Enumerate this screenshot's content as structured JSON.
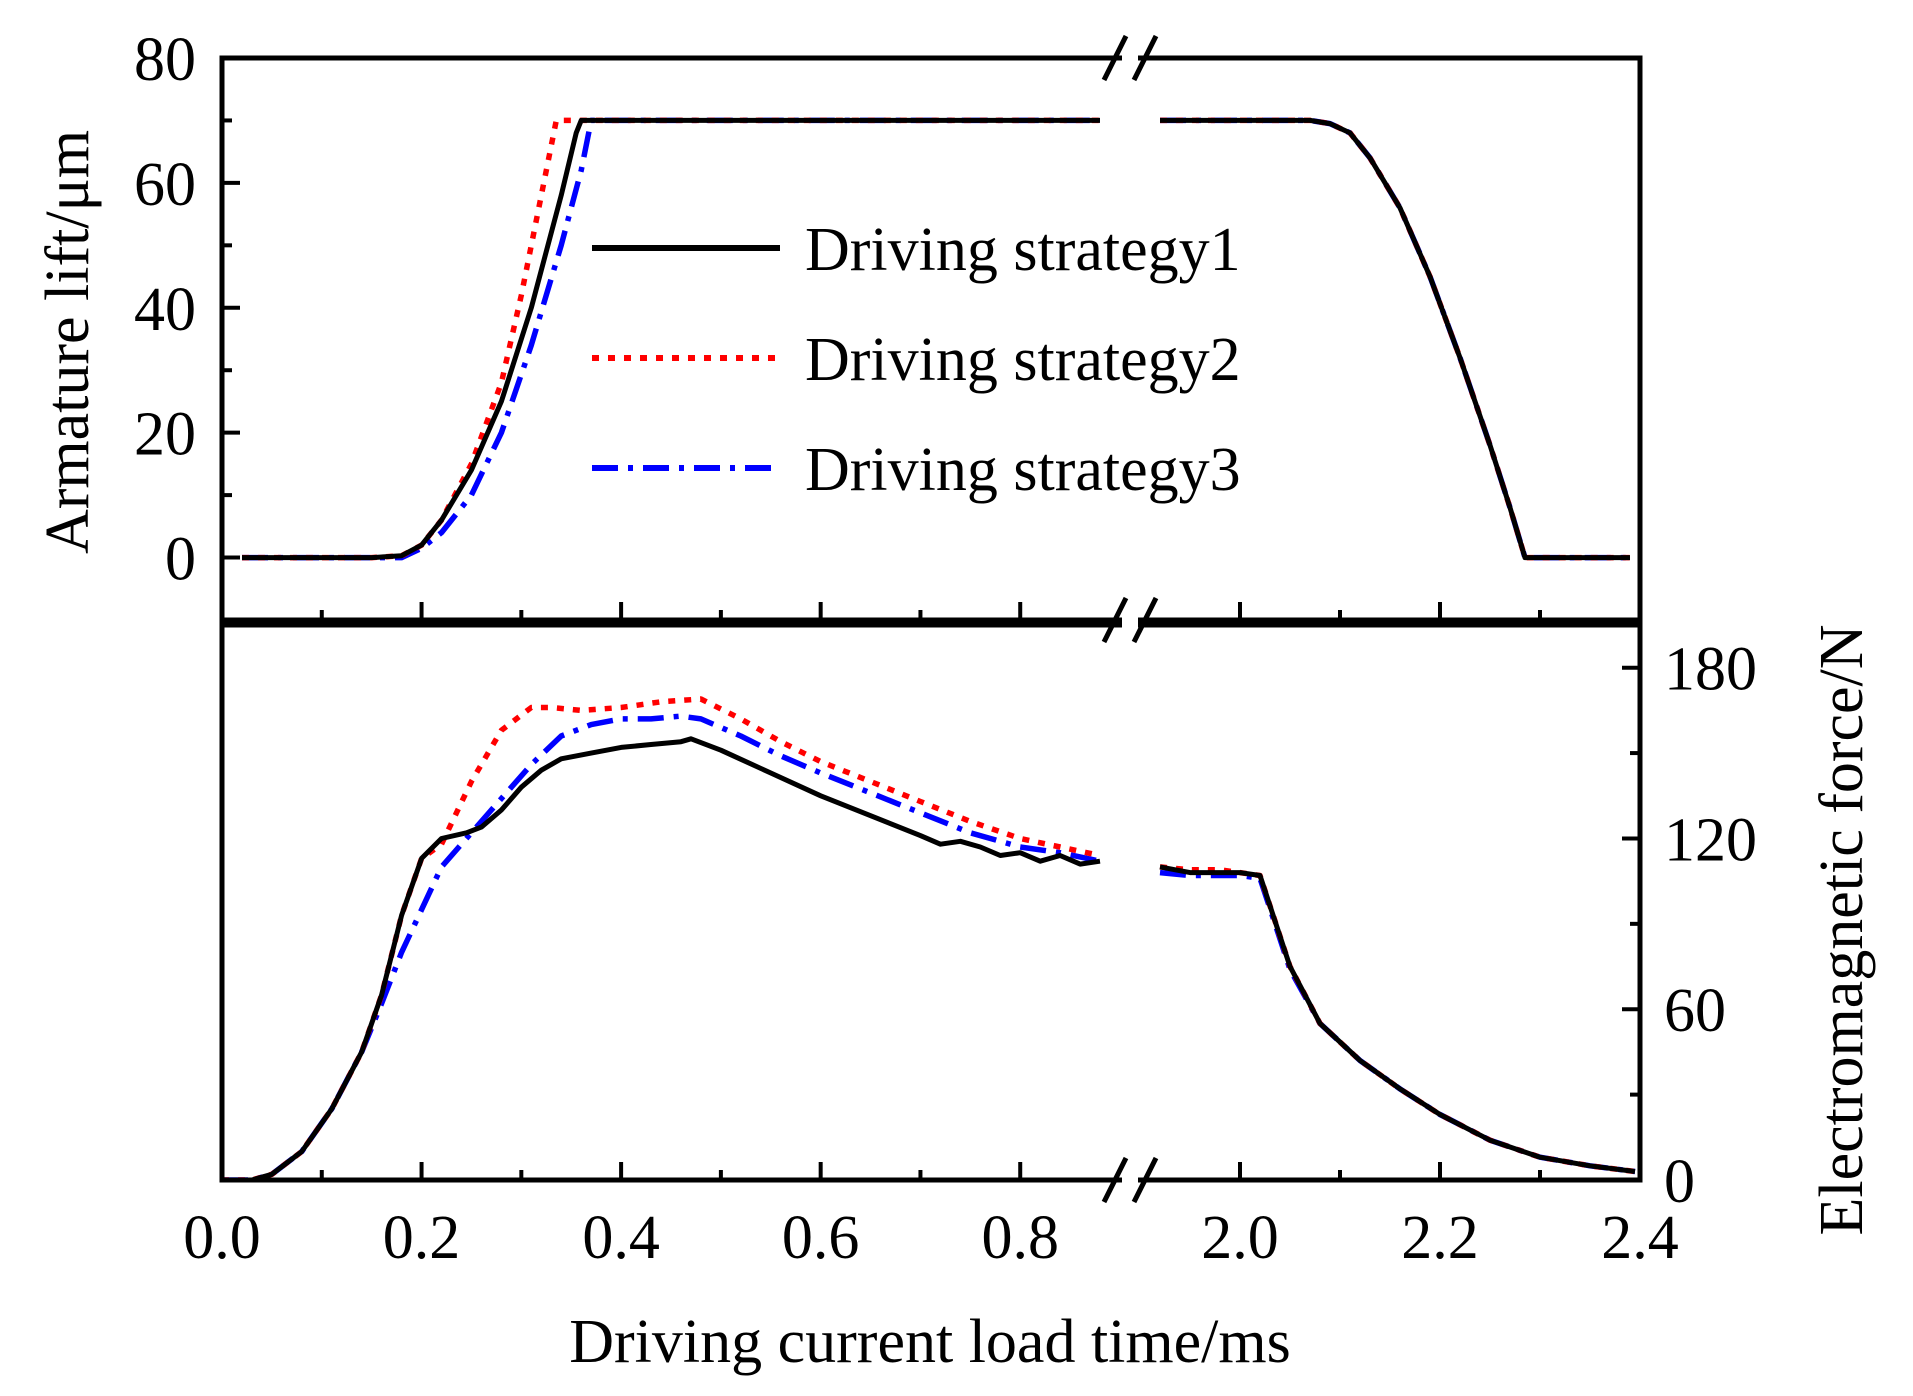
{
  "chart_data": {
    "type": "line",
    "x_label": "Driving current load time/ms",
    "x_tick_labels": [
      "0.0",
      "0.2",
      "0.4",
      "0.6",
      "0.8",
      "2.0",
      "2.2",
      "2.4"
    ],
    "x_break": [
      0.9,
      1.9
    ],
    "legend": {
      "placement": "top-center of upper panel",
      "entries": [
        {
          "label": "Driving strategy1",
          "color": "#000000",
          "style": "solid"
        },
        {
          "label": "Driving strategy2",
          "color": "#ff0000",
          "style": "dotted"
        },
        {
          "label": "Driving strategy3",
          "color": "#0000ff",
          "style": "dash-dot"
        }
      ]
    },
    "panels": [
      {
        "name": "armature-lift",
        "y_label": "Armature lift/μm",
        "y_axis_side": "left",
        "ylim": [
          -10,
          80
        ],
        "y_ticks": [
          0,
          20,
          40,
          60,
          80
        ],
        "y_tick_labels": [
          "0",
          "20",
          "40",
          "60",
          "80"
        ],
        "series": [
          {
            "label": "Driving strategy1",
            "points": [
              [
                0.02,
                0
              ],
              [
                0.15,
                0
              ],
              [
                0.18,
                0.3
              ],
              [
                0.2,
                2
              ],
              [
                0.22,
                6
              ],
              [
                0.25,
                14
              ],
              [
                0.28,
                25
              ],
              [
                0.31,
                40
              ],
              [
                0.34,
                58
              ],
              [
                0.355,
                68
              ],
              [
                0.36,
                70
              ],
              [
                0.88,
                70
              ],
              [
                1.92,
                70
              ],
              [
                2.07,
                70
              ],
              [
                2.09,
                69.5
              ],
              [
                2.11,
                68
              ],
              [
                2.13,
                64
              ],
              [
                2.16,
                56
              ],
              [
                2.19,
                45
              ],
              [
                2.22,
                32
              ],
              [
                2.25,
                18
              ],
              [
                2.27,
                8
              ],
              [
                2.285,
                0
              ],
              [
                2.39,
                0
              ]
            ]
          },
          {
            "label": "Driving strategy2",
            "points": [
              [
                0.02,
                0
              ],
              [
                0.15,
                0
              ],
              [
                0.18,
                0.3
              ],
              [
                0.2,
                2
              ],
              [
                0.22,
                6
              ],
              [
                0.25,
                15
              ],
              [
                0.28,
                28
              ],
              [
                0.3,
                42
              ],
              [
                0.32,
                58
              ],
              [
                0.335,
                70
              ],
              [
                0.88,
                70
              ],
              [
                1.92,
                70
              ],
              [
                2.07,
                70
              ],
              [
                2.09,
                69.5
              ],
              [
                2.11,
                68
              ],
              [
                2.13,
                64
              ],
              [
                2.16,
                56
              ],
              [
                2.19,
                45
              ],
              [
                2.22,
                32
              ],
              [
                2.25,
                18
              ],
              [
                2.27,
                8
              ],
              [
                2.285,
                0
              ],
              [
                2.39,
                0
              ]
            ]
          },
          {
            "label": "Driving strategy3",
            "points": [
              [
                0.02,
                0
              ],
              [
                0.18,
                0
              ],
              [
                0.2,
                1.5
              ],
              [
                0.22,
                4
              ],
              [
                0.25,
                10
              ],
              [
                0.28,
                20
              ],
              [
                0.31,
                34
              ],
              [
                0.34,
                50
              ],
              [
                0.36,
                62
              ],
              [
                0.37,
                70
              ],
              [
                0.88,
                70
              ],
              [
                1.92,
                70
              ],
              [
                2.07,
                70
              ],
              [
                2.09,
                69.5
              ],
              [
                2.11,
                68
              ],
              [
                2.13,
                64
              ],
              [
                2.16,
                56
              ],
              [
                2.19,
                45
              ],
              [
                2.22,
                32
              ],
              [
                2.25,
                18
              ],
              [
                2.27,
                8
              ],
              [
                2.285,
                0
              ],
              [
                2.39,
                0
              ]
            ]
          }
        ]
      },
      {
        "name": "electromagnetic-force",
        "y_label": "Electromagnetic force/N",
        "y_axis_side": "right",
        "ylim": [
          0,
          195
        ],
        "y_ticks": [
          0,
          60,
          120,
          180
        ],
        "y_tick_labels": [
          "0",
          "60",
          "120",
          "180"
        ],
        "series": [
          {
            "label": "Driving strategy1",
            "points": [
              [
                0.0,
                0
              ],
              [
                0.03,
                0
              ],
              [
                0.05,
                2
              ],
              [
                0.08,
                10
              ],
              [
                0.11,
                25
              ],
              [
                0.14,
                45
              ],
              [
                0.16,
                65
              ],
              [
                0.18,
                93
              ],
              [
                0.2,
                113
              ],
              [
                0.22,
                120
              ],
              [
                0.245,
                122
              ],
              [
                0.26,
                124
              ],
              [
                0.28,
                130
              ],
              [
                0.3,
                138
              ],
              [
                0.32,
                144
              ],
              [
                0.34,
                148
              ],
              [
                0.37,
                150
              ],
              [
                0.4,
                152
              ],
              [
                0.43,
                153
              ],
              [
                0.46,
                154
              ],
              [
                0.47,
                155
              ],
              [
                0.5,
                151
              ],
              [
                0.55,
                143
              ],
              [
                0.6,
                135
              ],
              [
                0.65,
                128
              ],
              [
                0.7,
                121
              ],
              [
                0.72,
                118
              ],
              [
                0.74,
                119
              ],
              [
                0.76,
                117
              ],
              [
                0.78,
                114
              ],
              [
                0.8,
                115
              ],
              [
                0.82,
                112
              ],
              [
                0.84,
                114
              ],
              [
                0.86,
                111
              ],
              [
                0.88,
                112
              ],
              [
                1.92,
                110
              ],
              [
                1.95,
                108
              ],
              [
                1.98,
                108
              ],
              [
                2.0,
                108
              ],
              [
                2.02,
                107
              ],
              [
                2.05,
                75
              ],
              [
                2.08,
                55
              ],
              [
                2.12,
                42
              ],
              [
                2.16,
                32
              ],
              [
                2.2,
                23
              ],
              [
                2.25,
                14
              ],
              [
                2.3,
                8
              ],
              [
                2.35,
                5
              ],
              [
                2.395,
                3
              ]
            ]
          },
          {
            "label": "Driving strategy2",
            "points": [
              [
                0.0,
                0
              ],
              [
                0.03,
                0
              ],
              [
                0.05,
                2
              ],
              [
                0.08,
                10
              ],
              [
                0.11,
                25
              ],
              [
                0.14,
                45
              ],
              [
                0.16,
                65
              ],
              [
                0.18,
                93
              ],
              [
                0.2,
                113
              ],
              [
                0.22,
                118
              ],
              [
                0.25,
                140
              ],
              [
                0.28,
                158
              ],
              [
                0.31,
                166
              ],
              [
                0.33,
                166
              ],
              [
                0.36,
                165
              ],
              [
                0.4,
                166
              ],
              [
                0.44,
                168
              ],
              [
                0.48,
                169
              ],
              [
                0.52,
                162
              ],
              [
                0.56,
                154
              ],
              [
                0.6,
                147
              ],
              [
                0.65,
                140
              ],
              [
                0.7,
                133
              ],
              [
                0.75,
                126
              ],
              [
                0.8,
                120
              ],
              [
                0.84,
                117
              ],
              [
                0.88,
                114
              ],
              [
                1.92,
                110
              ],
              [
                1.95,
                109
              ],
              [
                1.98,
                109
              ],
              [
                2.0,
                108
              ],
              [
                2.02,
                107
              ],
              [
                2.05,
                75
              ],
              [
                2.08,
                55
              ],
              [
                2.12,
                42
              ],
              [
                2.16,
                32
              ],
              [
                2.2,
                23
              ],
              [
                2.25,
                14
              ],
              [
                2.3,
                8
              ],
              [
                2.35,
                5
              ],
              [
                2.395,
                3
              ]
            ]
          },
          {
            "label": "Driving strategy3",
            "points": [
              [
                0.0,
                0
              ],
              [
                0.03,
                0
              ],
              [
                0.05,
                2
              ],
              [
                0.08,
                10
              ],
              [
                0.11,
                25
              ],
              [
                0.14,
                45
              ],
              [
                0.16,
                62
              ],
              [
                0.18,
                80
              ],
              [
                0.2,
                95
              ],
              [
                0.22,
                110
              ],
              [
                0.25,
                122
              ],
              [
                0.28,
                134
              ],
              [
                0.31,
                146
              ],
              [
                0.34,
                156
              ],
              [
                0.37,
                160
              ],
              [
                0.4,
                162
              ],
              [
                0.43,
                162
              ],
              [
                0.46,
                163
              ],
              [
                0.48,
                162
              ],
              [
                0.52,
                156
              ],
              [
                0.56,
                149
              ],
              [
                0.6,
                143
              ],
              [
                0.65,
                136
              ],
              [
                0.7,
                129
              ],
              [
                0.75,
                122
              ],
              [
                0.8,
                117
              ],
              [
                0.84,
                115
              ],
              [
                0.88,
                112
              ],
              [
                1.92,
                108
              ],
              [
                1.95,
                107
              ],
              [
                1.98,
                107
              ],
              [
                2.0,
                107
              ],
              [
                2.02,
                106
              ],
              [
                2.05,
                74
              ],
              [
                2.08,
                55
              ],
              [
                2.12,
                42
              ],
              [
                2.16,
                32
              ],
              [
                2.2,
                23
              ],
              [
                2.25,
                14
              ],
              [
                2.3,
                8
              ],
              [
                2.35,
                5
              ],
              [
                2.395,
                3
              ]
            ]
          }
        ]
      }
    ]
  }
}
